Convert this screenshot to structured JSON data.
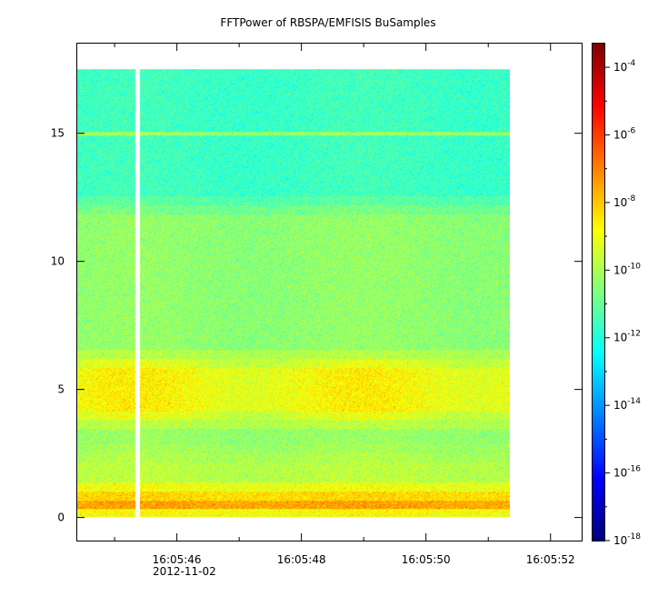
{
  "chart_data": {
    "type": "heatmap",
    "title": "FFTPower of RBSPA/EMFISIS  BuSamples",
    "date_label": "2012-11-02",
    "x": {
      "ticks": [
        "16:05:46",
        "16:05:48",
        "16:05:50",
        "16:05:52"
      ],
      "tick_seconds": [
        46,
        48,
        50,
        52
      ],
      "minor_tick_seconds": [
        45,
        47,
        49,
        51
      ],
      "range_seconds": [
        44.4,
        52.5
      ],
      "data_start_seconds": 44.4,
      "data_end_seconds": 51.35,
      "gap_seconds": [
        45.33,
        45.38
      ]
    },
    "y": {
      "ticks": [
        "0",
        "5",
        "10",
        "15"
      ],
      "tick_values": [
        0,
        5,
        10,
        15
      ],
      "range": [
        -0.9,
        18.5
      ],
      "data_range": [
        0,
        17.5
      ]
    },
    "colorbar": {
      "scale": "log",
      "range_exp": [
        -18,
        -3.3
      ],
      "tick_base": "10",
      "tick_exponents": [
        "-4",
        "-6",
        "-8",
        "-10",
        "-12",
        "-14",
        "-16",
        "-18"
      ],
      "colormap": [
        "#00007f",
        "#0000ff",
        "#007fff",
        "#00ffff",
        "#7fff7f",
        "#ffff00",
        "#ff7f00",
        "#ff0000",
        "#7f0000"
      ]
    },
    "bands": [
      {
        "from": 0,
        "to": 1.0,
        "log_power": -7.5
      },
      {
        "from": 1.0,
        "to": 2.5,
        "log_power": -9.8
      },
      {
        "from": 2.5,
        "to": 3.8,
        "log_power": -10.3
      },
      {
        "from": 3.8,
        "to": 6.2,
        "log_power": -8.9
      },
      {
        "from": 6.2,
        "to": 12.2,
        "log_power": -10.4
      },
      {
        "from": 12.2,
        "to": 17.5,
        "log_power": -11.6
      }
    ],
    "line_feature": {
      "y": 15.0,
      "log_power": -10.2
    }
  }
}
